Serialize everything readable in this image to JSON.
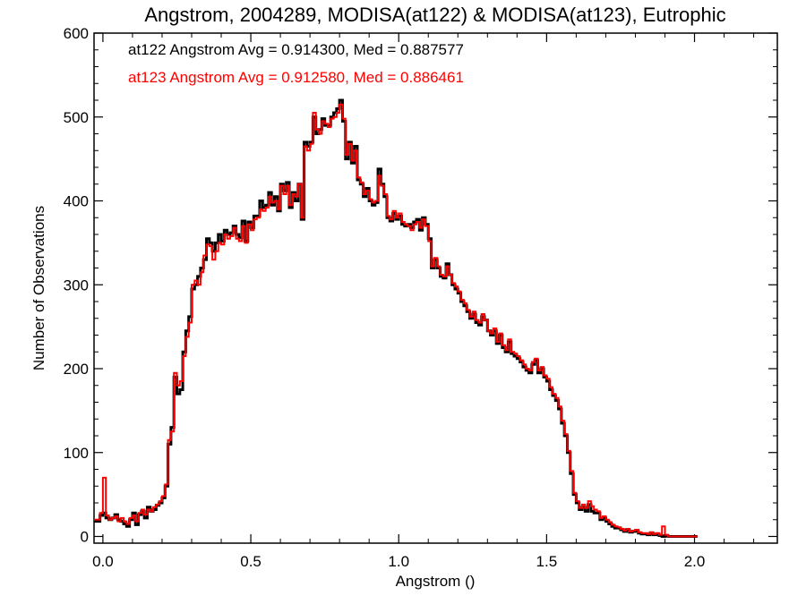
{
  "chart_data": {
    "type": "histogram",
    "title": "Angstrom, 2004289, MODISA(at122) & MODISA(at123), Eutrophic",
    "xlabel": "Angstrom ()",
    "ylabel": "Number of Observations",
    "xlim": [
      -0.03,
      2.28
    ],
    "ylim": [
      -8,
      600
    ],
    "x_ticks": [
      0.0,
      0.5,
      1.0,
      1.5,
      2.0
    ],
    "x_tick_labels": [
      "0.0",
      "0.5",
      "1.0",
      "1.5",
      "2.0"
    ],
    "y_ticks": [
      0,
      100,
      200,
      300,
      400,
      500,
      600
    ],
    "y_tick_labels": [
      "0",
      "100",
      "200",
      "300",
      "400",
      "500",
      "600"
    ],
    "grid": false,
    "legend_position": "top-left",
    "bin_start": -0.03,
    "bin_width": 0.01,
    "series": [
      {
        "name": "at122",
        "color": "#000000",
        "legend_text": "at122 Angstrom Avg = 0.914300, Med = 0.887577",
        "values": [
          18,
          18,
          25,
          28,
          22,
          20,
          22,
          26,
          20,
          18,
          15,
          12,
          20,
          28,
          14,
          26,
          30,
          22,
          35,
          30,
          32,
          37,
          40,
          46,
          60,
          110,
          130,
          190,
          170,
          175,
          220,
          245,
          262,
          295,
          300,
          310,
          320,
          330,
          355,
          350,
          340,
          350,
          360,
          352,
          365,
          360,
          362,
          370,
          360,
          356,
          376,
          352,
          375,
          368,
          382,
          382,
          400,
          392,
          395,
          410,
          395,
          405,
          388,
          420,
          412,
          422,
          392,
          410,
          400,
          420,
          378,
          470,
          465,
          470,
          500,
          480,
          485,
          498,
          490,
          490,
          500,
          505,
          510,
          520,
          495,
          450,
          470,
          445,
          465,
          425,
          420,
          405,
          415,
          400,
          395,
          398,
          438,
          420,
          405,
          380,
          376,
          385,
          378,
          382,
          372,
          370,
          372,
          368,
          375,
          378,
          365,
          380,
          372,
          355,
          320,
          330,
          320,
          310,
          308,
          325,
          312,
          300,
          295,
          290,
          280,
          275,
          268,
          260,
          265,
          255,
          252,
          262,
          258,
          245,
          240,
          245,
          230,
          240,
          225,
          220,
          232,
          218,
          215,
          212,
          208,
          202,
          198,
          195,
          205,
          210,
          195,
          200,
          190,
          185,
          175,
          168,
          162,
          152,
          135,
          120,
          100,
          75,
          50,
          40,
          32,
          35,
          30,
          38,
          30,
          28,
          28,
          20,
          22,
          18,
          15,
          12,
          10,
          10,
          8,
          6,
          8,
          5,
          6,
          7,
          4,
          3,
          3,
          2,
          4,
          2,
          3,
          1,
          0,
          1,
          0,
          0,
          0,
          0,
          0,
          0,
          0,
          0,
          0,
          0
        ]
      },
      {
        "name": "at123",
        "color": "#ff0000",
        "legend_text": "at123 Angstrom Avg = 0.912580, Med = 0.886461",
        "values": [
          20,
          20,
          28,
          70,
          25,
          20,
          22,
          24,
          18,
          22,
          18,
          15,
          22,
          25,
          18,
          28,
          32,
          26,
          32,
          30,
          35,
          38,
          42,
          48,
          62,
          115,
          125,
          195,
          180,
          185,
          215,
          238,
          255,
          300,
          305,
          300,
          315,
          335,
          348,
          346,
          330,
          340,
          350,
          348,
          360,
          355,
          358,
          368,
          355,
          352,
          370,
          350,
          372,
          365,
          378,
          380,
          390,
          388,
          392,
          405,
          398,
          400,
          390,
          418,
          408,
          418,
          395,
          408,
          405,
          420,
          380,
          465,
          460,
          468,
          505,
          485,
          480,
          495,
          492,
          488,
          498,
          500,
          505,
          515,
          498,
          455,
          468,
          448,
          460,
          428,
          422,
          408,
          412,
          402,
          398,
          400,
          430,
          418,
          408,
          382,
          378,
          388,
          380,
          385,
          375,
          372,
          370,
          365,
          372,
          375,
          368,
          378,
          370,
          352,
          322,
          332,
          322,
          312,
          310,
          322,
          312,
          302,
          298,
          292,
          282,
          278,
          270,
          262,
          268,
          258,
          255,
          265,
          258,
          245,
          242,
          248,
          232,
          242,
          228,
          222,
          235,
          220,
          218,
          215,
          210,
          205,
          200,
          198,
          208,
          212,
          198,
          202,
          192,
          188,
          178,
          170,
          165,
          155,
          138,
          122,
          102,
          78,
          52,
          42,
          34,
          38,
          34,
          42,
          36,
          32,
          30,
          22,
          24,
          20,
          17,
          14,
          12,
          11,
          9,
          7,
          9,
          6,
          7,
          8,
          5,
          4,
          4,
          3,
          5,
          3,
          4,
          2,
          12,
          2,
          0,
          0,
          0,
          0,
          0,
          0,
          0,
          0,
          0,
          0
        ]
      }
    ]
  }
}
